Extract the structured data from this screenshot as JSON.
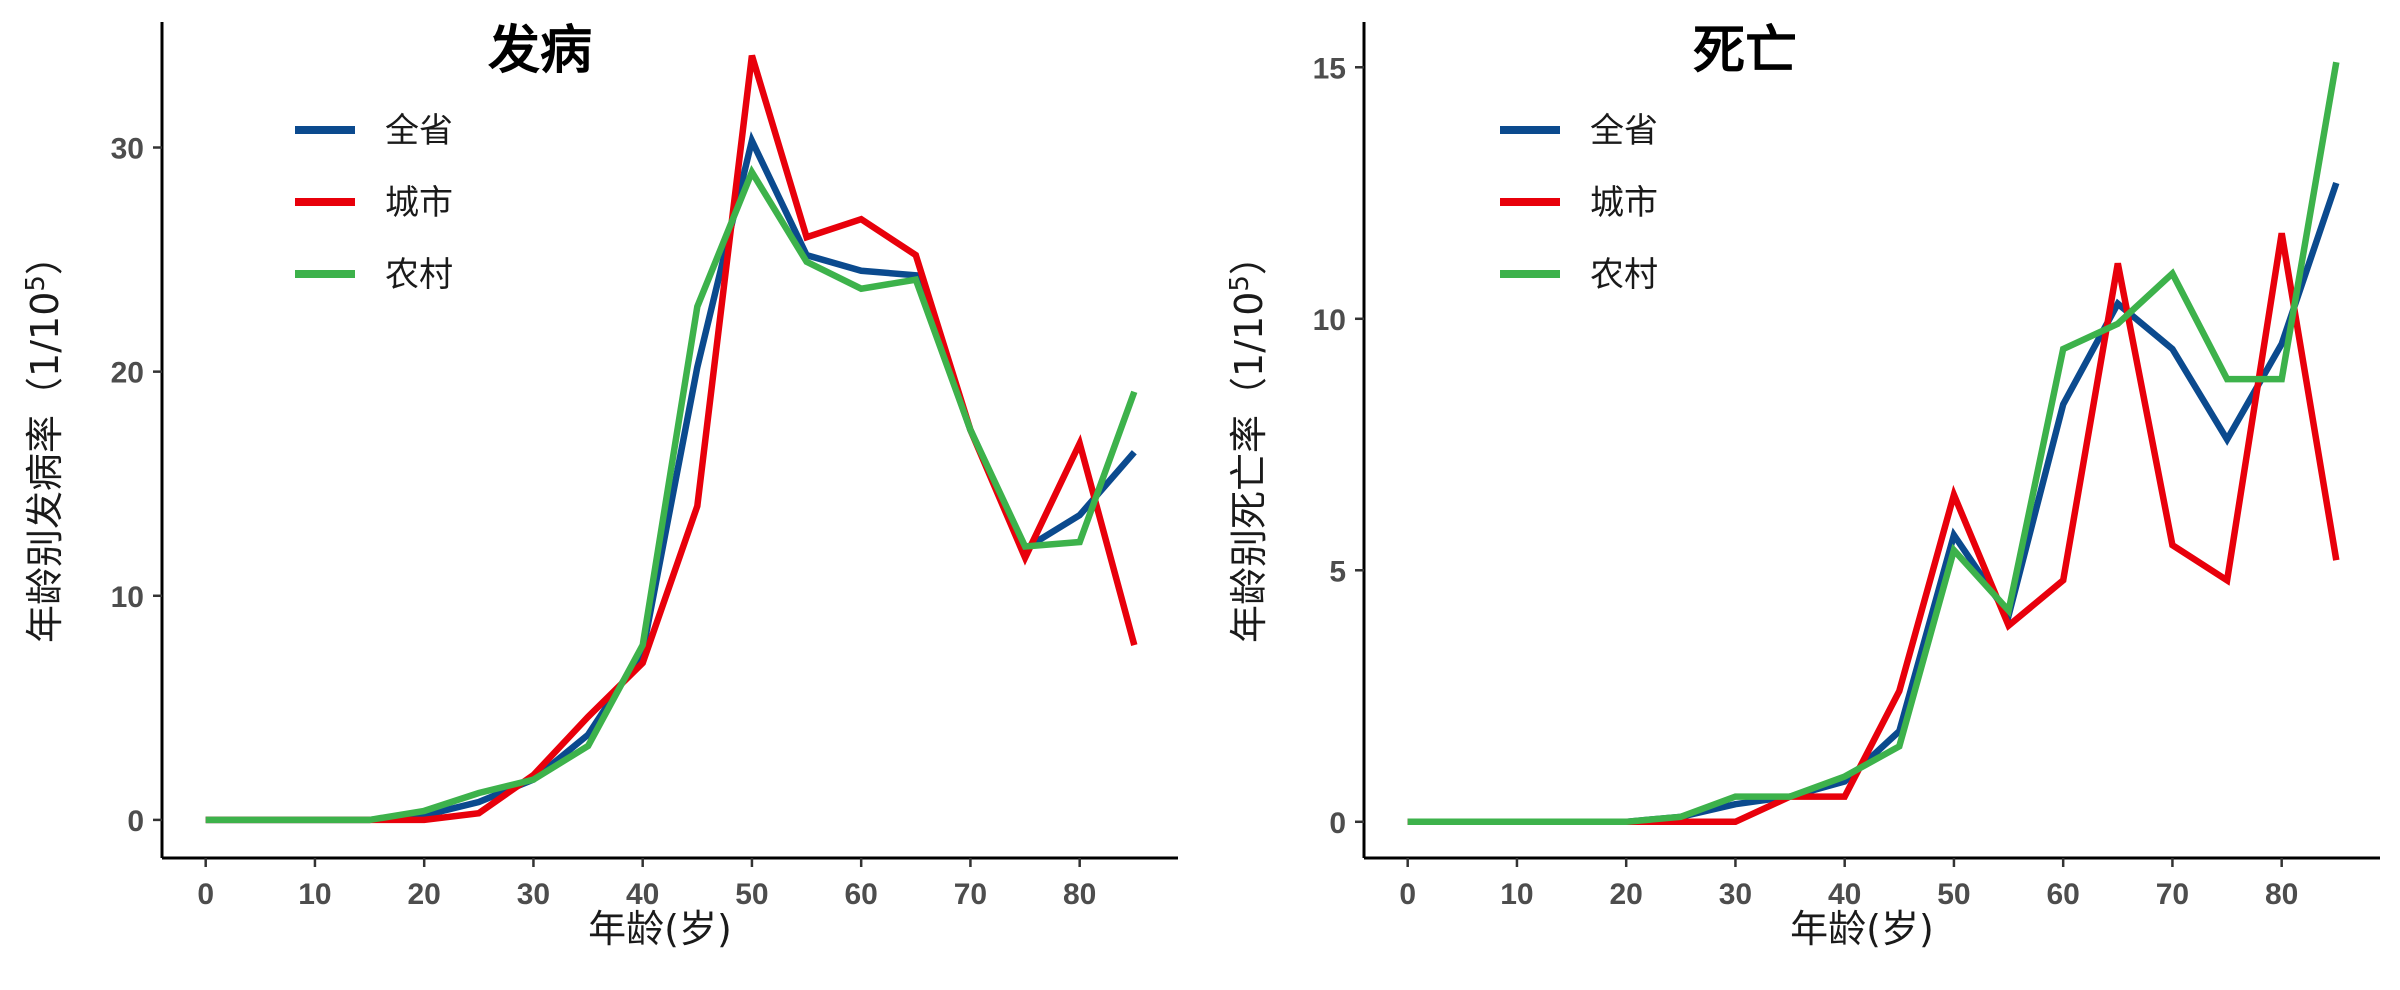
{
  "chart_data": [
    {
      "type": "line",
      "title": "发病",
      "xlabel": "年龄(岁)",
      "ylabel": "年龄别发病率（1/10",
      "ylabel_sup": "5",
      "ylabel_end": "）",
      "xlim": [
        -4,
        89
      ],
      "ylim": [
        -1.7,
        35.6
      ],
      "xticks": [
        0,
        10,
        20,
        30,
        40,
        50,
        60,
        70,
        80
      ],
      "yticks": [
        0,
        10,
        20,
        30
      ],
      "x": [
        0,
        5,
        10,
        15,
        20,
        25,
        30,
        35,
        40,
        45,
        50,
        55,
        60,
        65,
        70,
        75,
        80,
        85
      ],
      "legend_position": "top-left",
      "series": [
        {
          "name": "全省",
          "color": "#0b4a8e",
          "values": [
            0,
            0,
            0,
            0,
            0.2,
            0.8,
            1.8,
            3.8,
            7.5,
            20.2,
            30.3,
            25.2,
            24.5,
            24.3,
            17.4,
            12.1,
            13.6,
            16.4
          ]
        },
        {
          "name": "城市",
          "color": "#e8000b",
          "values": [
            0,
            0,
            0,
            0,
            0,
            0.3,
            2.0,
            4.6,
            7.0,
            14.0,
            34.1,
            26.0,
            26.8,
            25.2,
            17.4,
            11.7,
            16.8,
            7.8
          ]
        },
        {
          "name": "农村",
          "color": "#3db24b",
          "values": [
            0,
            0,
            0,
            0,
            0.4,
            1.2,
            1.8,
            3.3,
            7.8,
            22.9,
            28.9,
            24.9,
            23.7,
            24.1,
            17.4,
            12.2,
            12.4,
            19.1
          ]
        }
      ]
    },
    {
      "type": "line",
      "title": "死亡",
      "xlabel": "年龄(岁)",
      "ylabel": "年龄别死亡率（1/10",
      "ylabel_sup": "5",
      "ylabel_end": "）",
      "xlim": [
        -4,
        89
      ],
      "ylim": [
        -0.72,
        15.9
      ],
      "xticks": [
        0,
        10,
        20,
        30,
        40,
        50,
        60,
        70,
        80
      ],
      "yticks": [
        0,
        5,
        10,
        15
      ],
      "x": [
        0,
        5,
        10,
        15,
        20,
        25,
        30,
        35,
        40,
        45,
        50,
        55,
        60,
        65,
        70,
        75,
        80,
        85
      ],
      "legend_position": "top-left",
      "series": [
        {
          "name": "全省",
          "color": "#0b4a8e",
          "values": [
            0,
            0,
            0,
            0,
            0,
            0.1,
            0.35,
            0.5,
            0.8,
            1.8,
            5.7,
            4.1,
            8.3,
            10.3,
            9.4,
            7.6,
            9.5,
            12.7
          ]
        },
        {
          "name": "城市",
          "color": "#e8000b",
          "values": [
            0,
            0,
            0,
            0,
            0,
            0,
            0,
            0.5,
            0.5,
            2.6,
            6.5,
            3.9,
            4.8,
            11.1,
            5.5,
            4.8,
            11.7,
            5.2
          ]
        },
        {
          "name": "农村",
          "color": "#3db24b",
          "values": [
            0,
            0,
            0,
            0,
            0,
            0.1,
            0.5,
            0.5,
            0.9,
            1.5,
            5.4,
            4.2,
            9.4,
            9.9,
            10.9,
            8.8,
            8.8,
            15.1
          ]
        }
      ]
    }
  ]
}
